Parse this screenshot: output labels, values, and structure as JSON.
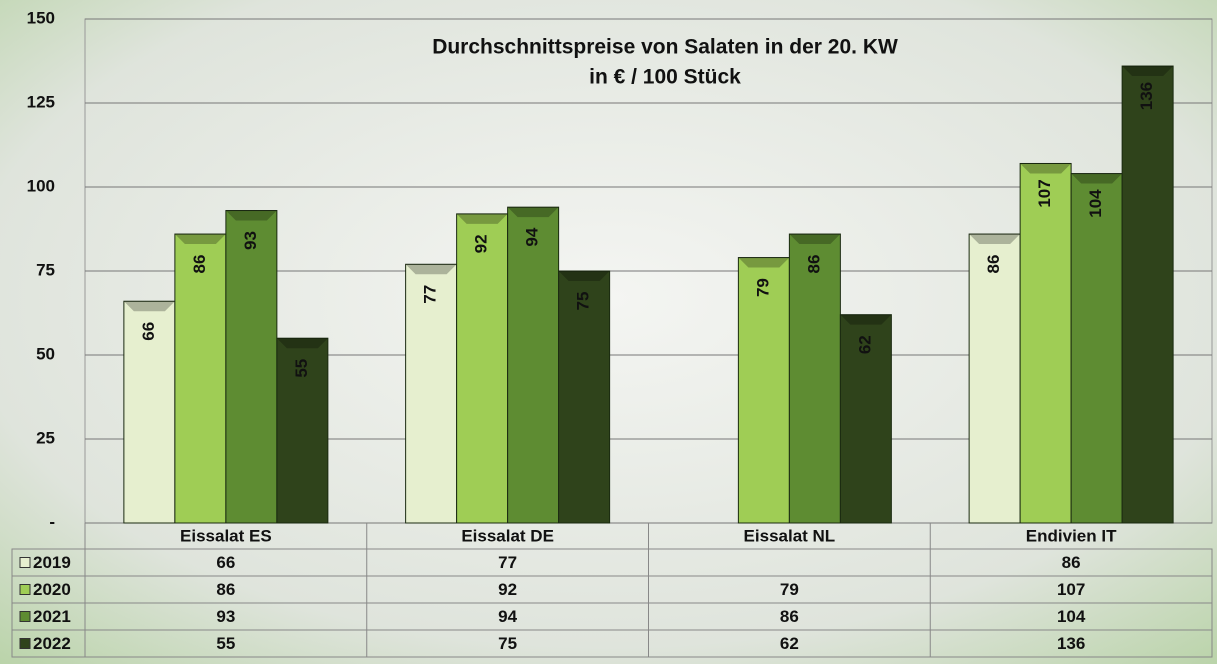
{
  "chart_data": {
    "type": "bar",
    "title": "Durchschnittspreise von Salaten in der 20. KW",
    "subtitle": "in € / 100 Stück",
    "categories": [
      "Eissalat ES",
      "Eissalat DE",
      "Eissalat NL",
      "Endivien IT"
    ],
    "series": [
      {
        "name": "2019",
        "color": "#e6efcf",
        "values": [
          66,
          77,
          null,
          86
        ]
      },
      {
        "name": "2020",
        "color": "#9fcd55",
        "values": [
          86,
          92,
          79,
          107
        ]
      },
      {
        "name": "2021",
        "color": "#5e8c32",
        "values": [
          93,
          94,
          86,
          104
        ]
      },
      {
        "name": "2022",
        "color": "#2f431b",
        "values": [
          55,
          75,
          62,
          136
        ]
      }
    ],
    "ylim": [
      0,
      150
    ],
    "yticks": [
      {
        "value": 0,
        "label": "-"
      },
      25,
      50,
      75,
      100,
      125,
      150
    ],
    "grid": true
  }
}
